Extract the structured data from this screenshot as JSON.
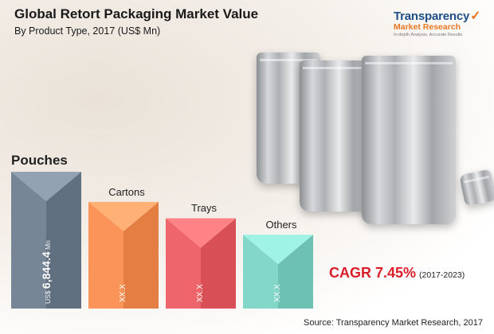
{
  "title": "Global Retort Packaging Market Value",
  "subtitle": "By Product Type, 2017 (US$ Mn)",
  "logo": {
    "main": "Transparency",
    "sub": "Market Research",
    "tag": "In-depth Analysis. Accurate Results"
  },
  "chart_data": {
    "type": "bar",
    "title": "Global Retort Packaging Market Value",
    "subtitle": "By Product Type, 2017 (US$ Mn)",
    "categories": [
      "Pouches",
      "Cartons",
      "Trays",
      "Others"
    ],
    "values": [
      6844.4,
      null,
      null,
      null
    ],
    "relative_heights": [
      1.0,
      0.78,
      0.66,
      0.54
    ],
    "value_labels": [
      "6,844.4",
      "XX.X",
      "XX.X",
      "XX.X"
    ],
    "value_prefix": "US$",
    "value_suffix": "Mn",
    "colors": [
      "#6d7c8c",
      "#f08a4e",
      "#e45c61",
      "#79cdbe"
    ]
  },
  "cagr": {
    "label": "CAGR 7.45%",
    "period": "(2017-2023)"
  },
  "source": "Source:  Transparency Market Research, 2017"
}
